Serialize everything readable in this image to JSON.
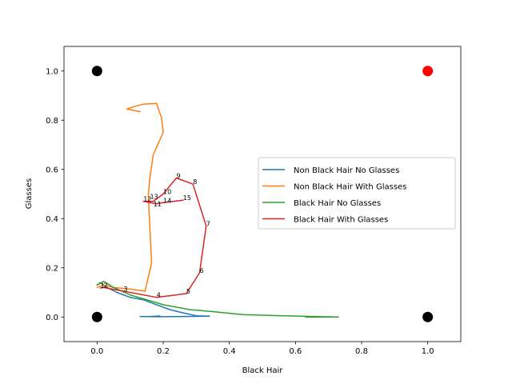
{
  "chart_data": {
    "type": "line",
    "xlabel": "Black Hair",
    "ylabel": "Glasses",
    "xlim": [
      -0.1,
      1.1
    ],
    "ylim": [
      -0.1,
      1.1
    ],
    "xticks": [
      "0.0",
      "0.2",
      "0.4",
      "0.6",
      "0.8",
      "1.0"
    ],
    "yticks": [
      "0.0",
      "0.2",
      "0.4",
      "0.6",
      "0.8",
      "1.0"
    ],
    "legend_position": "center-right",
    "series": [
      {
        "name": "Non Black Hair No Glasses",
        "color": "#1f77b4",
        "x": [
          0.0,
          0.01,
          0.03,
          0.06,
          0.1,
          0.14,
          0.18,
          0.22,
          0.25,
          0.3,
          0.34,
          0.26,
          0.2,
          0.16,
          0.13,
          0.18,
          0.19,
          0.16
        ],
        "y": [
          0.13,
          0.14,
          0.12,
          0.1,
          0.08,
          0.07,
          0.05,
          0.03,
          0.02,
          0.005,
          0.003,
          0.002,
          0.001,
          0.002,
          0.002,
          0.001,
          0.004,
          0.002
        ]
      },
      {
        "name": "Non Black Hair With Glasses",
        "color": "#ff7f0e",
        "x": [
          0.0,
          0.02,
          0.05,
          0.09,
          0.12,
          0.145,
          0.165,
          0.16,
          0.155,
          0.16,
          0.17,
          0.2,
          0.195,
          0.18,
          0.14,
          0.11,
          0.09,
          0.13
        ],
        "y": [
          0.12,
          0.13,
          0.12,
          0.115,
          0.11,
          0.105,
          0.22,
          0.35,
          0.5,
          0.57,
          0.66,
          0.75,
          0.81,
          0.868,
          0.865,
          0.855,
          0.845,
          0.835
        ]
      },
      {
        "name": "Black Hair No Glasses",
        "color": "#2ca02c",
        "x": [
          0.0,
          0.02,
          0.05,
          0.1,
          0.15,
          0.2,
          0.28,
          0.35,
          0.44,
          0.53,
          0.62,
          0.68,
          0.73,
          0.63
        ],
        "y": [
          0.13,
          0.145,
          0.12,
          0.09,
          0.07,
          0.05,
          0.03,
          0.022,
          0.01,
          0.006,
          0.003,
          0.001,
          0.0,
          0.0
        ]
      },
      {
        "name": "Black Hair With Glasses",
        "color": "#d62728",
        "x": [
          0.01,
          0.02,
          0.08,
          0.18,
          0.27,
          0.31,
          0.33,
          0.29,
          0.24,
          0.2,
          0.17,
          0.14,
          0.18,
          0.2,
          0.26
        ],
        "y": [
          0.118,
          0.12,
          0.105,
          0.08,
          0.095,
          0.18,
          0.37,
          0.54,
          0.565,
          0.5,
          0.47,
          0.47,
          0.46,
          0.465,
          0.475
        ]
      }
    ],
    "point_labels": [
      {
        "text": "1",
        "x": 0.01,
        "y": 0.118
      },
      {
        "text": "2",
        "x": 0.02,
        "y": 0.12
      },
      {
        "text": "3",
        "x": 0.08,
        "y": 0.105
      },
      {
        "text": "4",
        "x": 0.18,
        "y": 0.08
      },
      {
        "text": "5",
        "x": 0.27,
        "y": 0.095
      },
      {
        "text": "6",
        "x": 0.31,
        "y": 0.18
      },
      {
        "text": "7",
        "x": 0.33,
        "y": 0.37
      },
      {
        "text": "8",
        "x": 0.29,
        "y": 0.54
      },
      {
        "text": "9",
        "x": 0.24,
        "y": 0.565
      },
      {
        "text": "10",
        "x": 0.2,
        "y": 0.5
      },
      {
        "text": "11",
        "x": 0.17,
        "y": 0.45
      },
      {
        "text": "12",
        "x": 0.14,
        "y": 0.47
      },
      {
        "text": "13",
        "x": 0.16,
        "y": 0.48
      },
      {
        "text": "14",
        "x": 0.2,
        "y": 0.465
      },
      {
        "text": "15",
        "x": 0.26,
        "y": 0.475
      }
    ],
    "corner_markers": [
      {
        "x": 0,
        "y": 0,
        "color": "#000000"
      },
      {
        "x": 0,
        "y": 1,
        "color": "#000000"
      },
      {
        "x": 1,
        "y": 0,
        "color": "#000000"
      },
      {
        "x": 1,
        "y": 1,
        "color": "#ff0000"
      }
    ]
  }
}
